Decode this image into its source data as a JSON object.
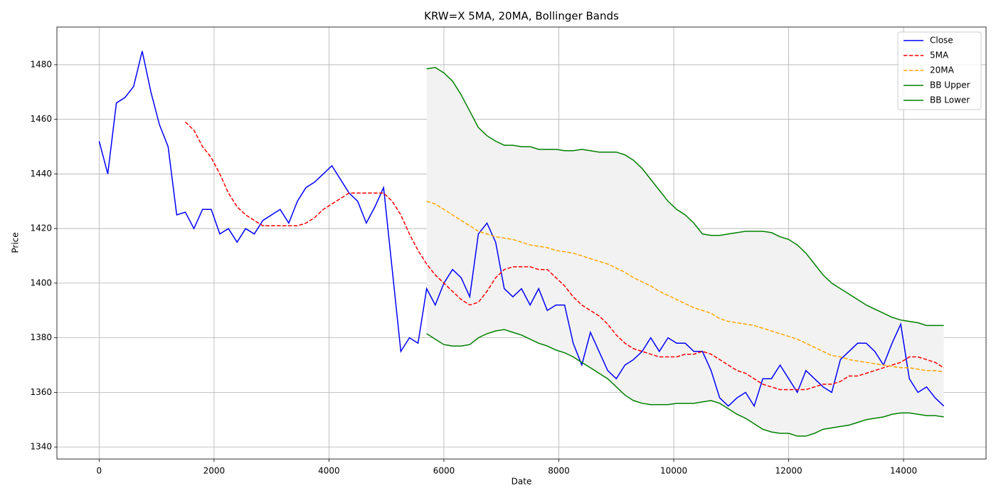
{
  "chart_data": {
    "type": "line",
    "title": "KRW=X 5MA, 20MA, Bollinger Bands",
    "x_label": "Date",
    "y_label": "Price",
    "x": [
      0,
      150,
      300,
      450,
      600,
      750,
      900,
      1050,
      1200,
      1350,
      1500,
      1650,
      1800,
      1950,
      2100,
      2250,
      2400,
      2550,
      2700,
      2850,
      3000,
      3150,
      3300,
      3450,
      3600,
      3750,
      3900,
      4050,
      4200,
      4350,
      4500,
      4650,
      4800,
      4950,
      5100,
      5250,
      5400,
      5550,
      5700,
      5850,
      6000,
      6150,
      6300,
      6450,
      6600,
      6750,
      6900,
      7050,
      7200,
      7350,
      7500,
      7650,
      7800,
      7950,
      8100,
      8250,
      8400,
      8550,
      8700,
      8850,
      9000,
      9150,
      9300,
      9450,
      9600,
      9750,
      9900,
      10050,
      10200,
      10350,
      10500,
      10650,
      10800,
      10950,
      11100,
      11250,
      11400,
      11550,
      11700,
      11850,
      12000,
      12150,
      12300,
      12450,
      12600,
      12750,
      12900,
      13050,
      13200,
      13350,
      13500,
      13650,
      13800,
      13950,
      14100,
      14250,
      14400,
      14550,
      14700
    ],
    "series": [
      {
        "name": "Close",
        "color": "#0000ff",
        "linestyle": "solid",
        "values": [
          1452,
          1440,
          1466,
          1468,
          1472,
          1485,
          1470,
          1458,
          1450,
          1425,
          1426,
          1420,
          1427,
          1427,
          1418,
          1420,
          1415,
          1420,
          1418,
          1423,
          1425,
          1427,
          1422,
          1430,
          1435,
          1437,
          1440,
          1443,
          1438,
          1433,
          1430,
          1422,
          1428,
          1435,
          1405,
          1375,
          1380,
          1378,
          1398,
          1392,
          1400,
          1405,
          1402,
          1395,
          1418,
          1422,
          1415,
          1398,
          1395,
          1398,
          1392,
          1398,
          1390,
          1392,
          1392,
          1378,
          1370,
          1382,
          1375,
          1368,
          1365,
          1370,
          1372,
          1375,
          1380,
          1375,
          1380,
          1378,
          1378,
          1375,
          1375,
          1368,
          1358,
          1355,
          1358,
          1360,
          1355,
          1365,
          1365,
          1370,
          1365,
          1360,
          1368,
          1365,
          1362,
          1360,
          1372,
          1375,
          1378,
          1378,
          1375,
          1370,
          1378,
          1385,
          1365,
          1360,
          1362,
          1358,
          1355
        ]
      },
      {
        "name": "5MA",
        "color": "#ff0000",
        "linestyle": "dashed",
        "values": [
          null,
          null,
          null,
          null,
          null,
          null,
          null,
          null,
          null,
          null,
          1459,
          1456,
          1450,
          1446,
          1440,
          1433,
          1428,
          1425,
          1423,
          1421,
          1421,
          1421,
          1421,
          1421,
          1422,
          1424,
          1427,
          1429,
          1431,
          1433,
          1433,
          1433,
          1433,
          1433,
          1430,
          1425,
          1418,
          1412,
          1407,
          1403,
          1400,
          1397,
          1394,
          1392,
          1393,
          1397,
          1402,
          1405,
          1406,
          1406,
          1406,
          1405,
          1405,
          1402,
          1399,
          1395,
          1392,
          1390,
          1388,
          1385,
          1381,
          1378,
          1376,
          1375,
          1374,
          1373,
          1373,
          1373,
          1374,
          1374,
          1375,
          1374,
          1372,
          1370,
          1368,
          1367,
          1365,
          1363,
          1362,
          1361,
          1361,
          1361,
          1361,
          1362,
          1363,
          1363,
          1364,
          1366,
          1366,
          1367,
          1368,
          1369,
          1370,
          1371,
          1373,
          1373,
          1372,
          1371,
          1369
        ]
      },
      {
        "name": "20MA",
        "color": "#ffa500",
        "linestyle": "dashed",
        "values": [
          null,
          null,
          null,
          null,
          null,
          null,
          null,
          null,
          null,
          null,
          null,
          null,
          null,
          null,
          null,
          null,
          null,
          null,
          null,
          null,
          null,
          null,
          null,
          null,
          null,
          null,
          null,
          null,
          null,
          null,
          null,
          null,
          null,
          null,
          null,
          null,
          null,
          null,
          1430,
          1429,
          1427,
          1425,
          1423,
          1421,
          1419,
          1418,
          1417,
          1416.5,
          1416,
          1415,
          1414,
          1413.5,
          1413,
          1412,
          1411.5,
          1411,
          1410,
          1409,
          1408,
          1407,
          1405.5,
          1404,
          1402,
          1400.5,
          1399,
          1397,
          1395.5,
          1394,
          1392.5,
          1391,
          1390,
          1389,
          1387,
          1386,
          1385.5,
          1385,
          1384.5,
          1383.5,
          1382.5,
          1381.5,
          1380.5,
          1379.5,
          1378,
          1376.5,
          1375,
          1373.5,
          1373,
          1372,
          1371.5,
          1371,
          1370.5,
          1370,
          1369.5,
          1369,
          1369,
          1368.5,
          1368,
          1368,
          1367.5
        ]
      },
      {
        "name": "BB Upper",
        "color": "#008000",
        "linestyle": "solid",
        "values": [
          null,
          null,
          null,
          null,
          null,
          null,
          null,
          null,
          null,
          null,
          null,
          null,
          null,
          null,
          null,
          null,
          null,
          null,
          null,
          null,
          null,
          null,
          null,
          null,
          null,
          null,
          null,
          null,
          null,
          null,
          null,
          null,
          null,
          null,
          null,
          null,
          null,
          null,
          1478.5,
          1479,
          1477,
          1474,
          1469,
          1463,
          1457,
          1454,
          1452,
          1450.5,
          1450.5,
          1450,
          1450,
          1449,
          1449,
          1449,
          1448.5,
          1448.5,
          1449,
          1448.5,
          1448,
          1448,
          1448,
          1447,
          1445,
          1442,
          1438,
          1434,
          1430,
          1427,
          1425,
          1422,
          1418,
          1417.5,
          1417.5,
          1418,
          1418.5,
          1419,
          1419,
          1419,
          1418.5,
          1417,
          1416,
          1414,
          1411,
          1407,
          1403,
          1400,
          1398,
          1396,
          1394,
          1392,
          1390.5,
          1389,
          1387.5,
          1386.5,
          1386,
          1385.5,
          1384.5,
          1384.5,
          1384.5
        ]
      },
      {
        "name": "BB Lower",
        "color": "#008000",
        "linestyle": "solid",
        "values": [
          null,
          null,
          null,
          null,
          null,
          null,
          null,
          null,
          null,
          null,
          null,
          null,
          null,
          null,
          null,
          null,
          null,
          null,
          null,
          null,
          null,
          null,
          null,
          null,
          null,
          null,
          null,
          null,
          null,
          null,
          null,
          null,
          null,
          null,
          null,
          null,
          null,
          null,
          1381.5,
          1379.5,
          1377.5,
          1377,
          1377,
          1377.5,
          1380,
          1381.5,
          1382.5,
          1383,
          1382,
          1381,
          1379.5,
          1378,
          1377,
          1375.5,
          1374.5,
          1373,
          1371,
          1369,
          1367,
          1365,
          1362,
          1359,
          1357,
          1356,
          1355.5,
          1355.5,
          1355.5,
          1356,
          1356,
          1356,
          1356.5,
          1357,
          1356,
          1354,
          1352,
          1350.5,
          1348.5,
          1346.5,
          1345.5,
          1345,
          1345,
          1344,
          1344,
          1345,
          1346.5,
          1347,
          1347.5,
          1348,
          1349,
          1350,
          1350.5,
          1351,
          1352,
          1352.5,
          1352.5,
          1352,
          1351.5,
          1351.5,
          1351
        ]
      }
    ],
    "band_fill": "#f2f2f2",
    "xlim": [
      -735,
      15435
    ],
    "xticks": [
      0,
      2000,
      4000,
      6000,
      8000,
      10000,
      12000,
      14000
    ],
    "ylim": [
      1335.6,
      1493.8
    ],
    "yticks": [
      1340,
      1360,
      1380,
      1400,
      1420,
      1440,
      1460,
      1480
    ],
    "grid": true,
    "legend": "upper right"
  }
}
